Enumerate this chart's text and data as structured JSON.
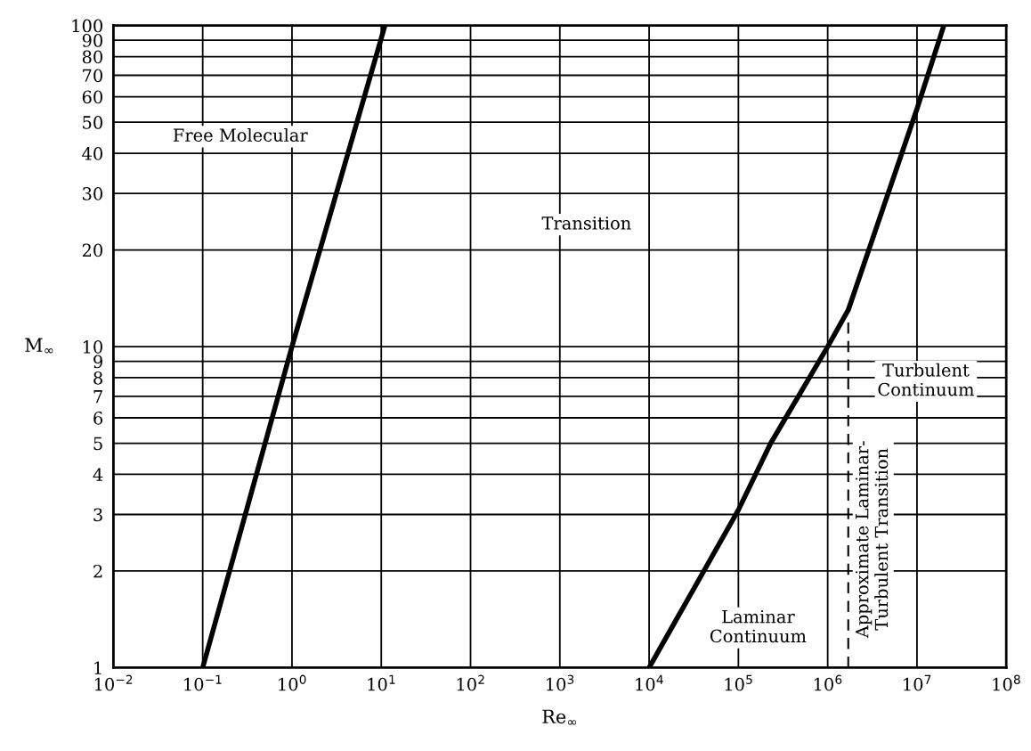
{
  "chart_data": {
    "type": "line",
    "xlabel": "Re$_{∞}$",
    "ylabel": "M$_{∞}$",
    "log": "xy",
    "grid": true,
    "marker": "none",
    "xlim": [
      0.01,
      100000000
    ],
    "ylim": [
      1,
      100
    ],
    "xticks": [
      {
        "value": 0.01,
        "label": "10$^{−2}$"
      },
      {
        "value": 0.1,
        "label": "10$^{−1}$"
      },
      {
        "value": 1,
        "label": "10$^{0}$"
      },
      {
        "value": 10,
        "label": "10$^{1}$"
      },
      {
        "value": 100,
        "label": "10$^{2}$"
      },
      {
        "value": 1000,
        "label": "10$^{3}$"
      },
      {
        "value": 10000,
        "label": "10$^{4}$"
      },
      {
        "value": 100000,
        "label": "10$^{5}$"
      },
      {
        "value": 1000000,
        "label": "10$^{6}$"
      },
      {
        "value": 10000000,
        "label": "10$^{7}$"
      },
      {
        "value": 100000000,
        "label": "10$^{8}$"
      }
    ],
    "yticks": [
      1,
      2,
      3,
      4,
      5,
      6,
      7,
      8,
      9,
      10,
      20,
      30,
      40,
      50,
      60,
      70,
      80,
      90,
      100
    ],
    "series": [
      {
        "color": "#000000",
        "line_style": "solid",
        "x": [
          0.1,
          1,
          11
        ],
        "values": [
          1,
          10,
          100
        ]
      },
      {
        "color": "#000000",
        "line_style": "solid",
        "x": [
          10000,
          100000,
          230000,
          1000000,
          1700000,
          10000000,
          20000000
        ],
        "values": [
          1,
          3.1,
          5,
          10,
          13,
          55,
          100
        ]
      },
      {
        "color": "#000000",
        "line_style": "dashed",
        "x": [
          1700000,
          1700000
        ],
        "values": [
          1,
          12
        ]
      }
    ],
    "annotations": [
      "Free Molecular",
      "Transition",
      "Laminar\nContinuum",
      "Approximate Laminar-\nTurbulent Transition",
      "Turbulent\nContinuum"
    ]
  }
}
